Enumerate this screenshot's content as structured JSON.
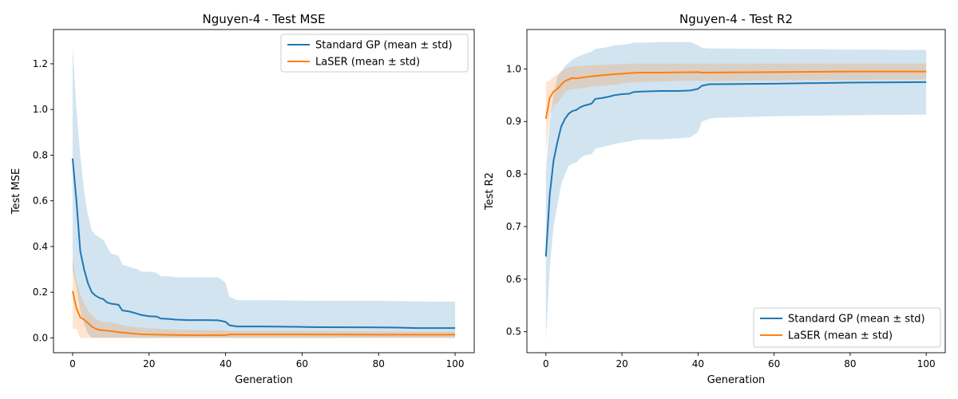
{
  "colors": {
    "gp": "#1f77b4",
    "laser": "#ff7f0e",
    "gp_band": "#1f77b4",
    "laser_band": "#ff7f0e"
  },
  "chart_data": [
    {
      "type": "line",
      "title": "Nguyen-4 - Test MSE",
      "xlabel": "Generation",
      "ylabel": "Test MSE",
      "xlim": [
        -5,
        105
      ],
      "ylim": [
        -0.065,
        1.35
      ],
      "xticks": [
        0,
        20,
        40,
        60,
        80,
        100
      ],
      "xtick_labels": [
        "0",
        "20",
        "40",
        "60",
        "80",
        "100"
      ],
      "yticks": [
        0.0,
        0.2,
        0.4,
        0.6,
        0.8,
        1.0,
        1.2
      ],
      "ytick_labels": [
        "0.0",
        "0.2",
        "0.4",
        "0.6",
        "0.8",
        "1.0",
        "1.2"
      ],
      "legend_position": "upper right",
      "series": [
        {
          "name": "Standard GP (mean ± std)",
          "color_key": "gp",
          "x": [
            0,
            1,
            2,
            3,
            4,
            5,
            6,
            7,
            8,
            9,
            10,
            12,
            13,
            15,
            17,
            18,
            20,
            22,
            23,
            25,
            27,
            30,
            35,
            38,
            39,
            40,
            41,
            43,
            45,
            50,
            60,
            65,
            80,
            85,
            90,
            100
          ],
          "mean": [
            0.785,
            0.6,
            0.38,
            0.3,
            0.24,
            0.2,
            0.185,
            0.175,
            0.17,
            0.155,
            0.15,
            0.145,
            0.12,
            0.115,
            0.105,
            0.1,
            0.095,
            0.093,
            0.085,
            0.083,
            0.08,
            0.078,
            0.078,
            0.077,
            0.074,
            0.07,
            0.055,
            0.05,
            0.05,
            0.05,
            0.048,
            0.047,
            0.046,
            0.045,
            0.043,
            0.043
          ],
          "upper": [
            1.28,
            1.0,
            0.8,
            0.64,
            0.54,
            0.47,
            0.45,
            0.44,
            0.43,
            0.4,
            0.37,
            0.36,
            0.32,
            0.31,
            0.3,
            0.29,
            0.29,
            0.285,
            0.27,
            0.27,
            0.265,
            0.265,
            0.265,
            0.265,
            0.255,
            0.24,
            0.18,
            0.165,
            0.165,
            0.165,
            0.163,
            0.162,
            0.162,
            0.161,
            0.16,
            0.158
          ],
          "lower": [
            0.3,
            0.22,
            0.12,
            0.06,
            0.02,
            0.0,
            0.0,
            0.0,
            0.0,
            0.0,
            0.0,
            0.0,
            0.0,
            0.0,
            0.0,
            0.0,
            0.0,
            0.0,
            0.0,
            0.0,
            0.0,
            0.0,
            0.0,
            0.0,
            0.0,
            0.0,
            0.0,
            0.0,
            0.0,
            0.0,
            0.0,
            0.0,
            0.0,
            0.0,
            0.0,
            0.0
          ]
        },
        {
          "name": "LaSER (mean ± std)",
          "color_key": "laser",
          "x": [
            0,
            1,
            2,
            3,
            4,
            5,
            6,
            7,
            8,
            10,
            12,
            15,
            18,
            20,
            25,
            30,
            40,
            41,
            60,
            80,
            100
          ],
          "mean": [
            0.205,
            0.13,
            0.09,
            0.08,
            0.065,
            0.05,
            0.04,
            0.035,
            0.033,
            0.03,
            0.025,
            0.02,
            0.016,
            0.015,
            0.013,
            0.012,
            0.012,
            0.015,
            0.015,
            0.014,
            0.014
          ],
          "upper": [
            0.35,
            0.25,
            0.19,
            0.15,
            0.12,
            0.1,
            0.085,
            0.075,
            0.07,
            0.068,
            0.06,
            0.05,
            0.045,
            0.042,
            0.038,
            0.035,
            0.033,
            0.03,
            0.03,
            0.028,
            0.028
          ],
          "lower": [
            0.04,
            0.04,
            0.0,
            0.0,
            0.0,
            0.0,
            0.0,
            0.0,
            0.0,
            0.0,
            0.0,
            0.0,
            0.0,
            0.0,
            0.0,
            0.0,
            0.0,
            0.0,
            0.0,
            0.0,
            0.0
          ]
        }
      ]
    },
    {
      "type": "line",
      "title": "Nguyen-4 - Test R2",
      "xlabel": "Generation",
      "ylabel": "Test R2",
      "xlim": [
        -5,
        105
      ],
      "ylim": [
        0.46,
        1.075
      ],
      "xticks": [
        0,
        20,
        40,
        60,
        80,
        100
      ],
      "xtick_labels": [
        "0",
        "20",
        "40",
        "60",
        "80",
        "100"
      ],
      "yticks": [
        0.5,
        0.6,
        0.7,
        0.8,
        0.9,
        1.0
      ],
      "ytick_labels": [
        "0.5",
        "0.6",
        "0.7",
        "0.8",
        "0.9",
        "1.0"
      ],
      "legend_position": "lower right",
      "series": [
        {
          "name": "Standard GP (mean ± std)",
          "color_key": "gp",
          "x": [
            0,
            1,
            2,
            3,
            4,
            5,
            6,
            7,
            8,
            9,
            10,
            12,
            13,
            15,
            17,
            18,
            20,
            22,
            23,
            25,
            30,
            35,
            38,
            40,
            41,
            43,
            45,
            60,
            80,
            100
          ],
          "mean": [
            0.643,
            0.76,
            0.825,
            0.86,
            0.89,
            0.905,
            0.915,
            0.92,
            0.922,
            0.927,
            0.93,
            0.934,
            0.943,
            0.945,
            0.948,
            0.95,
            0.952,
            0.953,
            0.956,
            0.957,
            0.958,
            0.958,
            0.959,
            0.962,
            0.968,
            0.971,
            0.971,
            0.972,
            0.974,
            0.975
          ],
          "upper": [
            0.805,
            0.9,
            0.95,
            0.985,
            0.995,
            1.005,
            1.012,
            1.018,
            1.022,
            1.025,
            1.028,
            1.033,
            1.038,
            1.04,
            1.043,
            1.045,
            1.046,
            1.048,
            1.05,
            1.05,
            1.051,
            1.051,
            1.051,
            1.045,
            1.04,
            1.039,
            1.039,
            1.038,
            1.037,
            1.036
          ],
          "lower": [
            0.485,
            0.62,
            0.7,
            0.74,
            0.78,
            0.8,
            0.815,
            0.82,
            0.822,
            0.83,
            0.835,
            0.838,
            0.848,
            0.852,
            0.855,
            0.857,
            0.86,
            0.862,
            0.864,
            0.866,
            0.866,
            0.868,
            0.87,
            0.88,
            0.9,
            0.905,
            0.907,
            0.91,
            0.912,
            0.913
          ]
        },
        {
          "name": "LaSER (mean ± std)",
          "color_key": "laser",
          "x": [
            0,
            1,
            2,
            3,
            4,
            5,
            6,
            7,
            8,
            10,
            12,
            15,
            18,
            20,
            22,
            25,
            30,
            40,
            41,
            60,
            80,
            100
          ],
          "mean": [
            0.905,
            0.945,
            0.957,
            0.962,
            0.97,
            0.977,
            0.98,
            0.983,
            0.982,
            0.984,
            0.986,
            0.988,
            0.99,
            0.991,
            0.992,
            0.993,
            0.993,
            0.994,
            0.993,
            0.994,
            0.995,
            0.995
          ],
          "upper": [
            0.975,
            0.978,
            0.985,
            0.99,
            0.995,
            1.0,
            1.003,
            1.005,
            1.005,
            1.006,
            1.007,
            1.008,
            1.009,
            1.009,
            1.01,
            1.01,
            1.01,
            1.01,
            1.01,
            1.01,
            1.01,
            1.01
          ],
          "lower": [
            0.84,
            0.91,
            0.93,
            0.935,
            0.945,
            0.955,
            0.96,
            0.962,
            0.962,
            0.964,
            0.966,
            0.968,
            0.97,
            0.972,
            0.974,
            0.975,
            0.976,
            0.978,
            0.977,
            0.978,
            0.979,
            0.98
          ]
        }
      ]
    }
  ]
}
